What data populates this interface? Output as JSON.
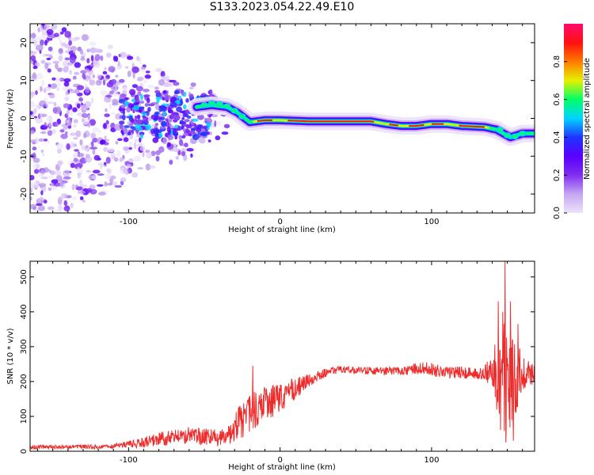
{
  "title": "S133.2023.054.22.49.E10",
  "chart_data": [
    {
      "type": "heatmap",
      "id": "spectrogram",
      "xlabel": "Height of straight line (km)",
      "ylabel": "Frequency (Hz)",
      "xlim": [
        -165,
        168
      ],
      "ylim": [
        -25,
        25
      ],
      "xticks": [
        -100,
        0,
        100
      ],
      "yticks": [
        -20,
        -10,
        0,
        10,
        20
      ],
      "colorbar": {
        "label": "Normalized spectral amplitude",
        "range": [
          0,
          1
        ],
        "ticks": [
          0.0,
          0.2,
          0.4,
          0.6,
          0.8
        ],
        "colormap": [
          "#ffffff",
          "#ede3fb",
          "#c6a6f2",
          "#7f2ef0",
          "#5a00ff",
          "#2034ff",
          "#00d4ff",
          "#00ff66",
          "#e6f000",
          "#ff7a00",
          "#ff1010",
          "#ff0a6e"
        ]
      },
      "ridge": {
        "description": "dominant frequency track",
        "points": [
          {
            "x": -55,
            "f": 3.0
          },
          {
            "x": -45,
            "f": 3.5
          },
          {
            "x": -35,
            "f": 3.0
          },
          {
            "x": -28,
            "f": 1.5
          },
          {
            "x": -20,
            "f": -1.0
          },
          {
            "x": -10,
            "f": -0.5
          },
          {
            "x": 0,
            "f": -0.5
          },
          {
            "x": 20,
            "f": -0.8
          },
          {
            "x": 40,
            "f": -0.8
          },
          {
            "x": 60,
            "f": -0.8
          },
          {
            "x": 70,
            "f": -1.5
          },
          {
            "x": 80,
            "f": -2.0
          },
          {
            "x": 90,
            "f": -2.0
          },
          {
            "x": 100,
            "f": -1.5
          },
          {
            "x": 110,
            "f": -1.5
          },
          {
            "x": 120,
            "f": -2.0
          },
          {
            "x": 135,
            "f": -2.3
          },
          {
            "x": 143,
            "f": -3.0
          },
          {
            "x": 152,
            "f": -5.0
          },
          {
            "x": 160,
            "f": -4.0
          },
          {
            "x": 168,
            "f": -4.0
          }
        ]
      }
    },
    {
      "type": "line",
      "id": "snr",
      "xlabel": "Height of straight line (km)",
      "ylabel": "SNR (10 * v/v)",
      "xlim": [
        -165,
        168
      ],
      "ylim": [
        0,
        545
      ],
      "xticks": [
        -100,
        0,
        100
      ],
      "yticks": [
        0,
        100,
        200,
        300,
        400,
        500
      ],
      "color": "#ee2c2c",
      "envelope": {
        "x": [
          -165,
          -140,
          -110,
          -95,
          -80,
          -60,
          -45,
          -35,
          -28,
          -20,
          -10,
          0,
          10,
          20,
          30,
          40,
          60,
          80,
          95,
          110,
          125,
          135,
          140,
          145,
          150,
          155,
          160,
          168
        ],
        "mean": [
          12,
          12,
          14,
          22,
          35,
          45,
          40,
          40,
          75,
          110,
          135,
          150,
          180,
          205,
          225,
          235,
          230,
          230,
          240,
          225,
          225,
          225,
          225,
          215,
          220,
          215,
          225,
          225
        ],
        "amp": [
          6,
          6,
          7,
          12,
          20,
          25,
          25,
          25,
          50,
          55,
          50,
          45,
          30,
          18,
          12,
          10,
          12,
          12,
          18,
          18,
          18,
          20,
          60,
          160,
          190,
          120,
          50,
          30
        ]
      },
      "spikes": [
        {
          "x": -18,
          "y": 245
        },
        {
          "x": 144,
          "y": 430
        },
        {
          "x": 147,
          "y": 400
        },
        {
          "x": 148.5,
          "y": 545
        },
        {
          "x": 149,
          "y": 25
        },
        {
          "x": 152,
          "y": 430
        },
        {
          "x": 154,
          "y": 30
        },
        {
          "x": 157,
          "y": 365
        }
      ]
    }
  ]
}
